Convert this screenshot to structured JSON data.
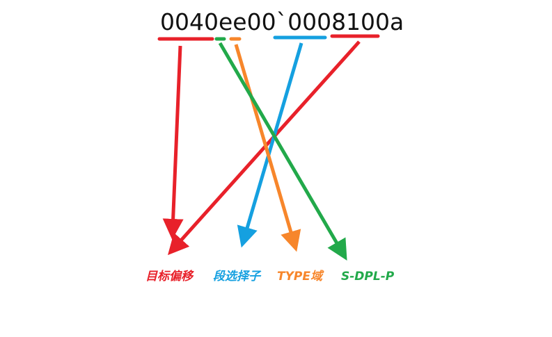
{
  "hex_value": "0040ee00`0008100a",
  "fields": [
    {
      "key": "offset",
      "label": "目标偏移",
      "color": "#e8212a"
    },
    {
      "key": "selector",
      "label": "段选择子",
      "color": "#15a0e0"
    },
    {
      "key": "type",
      "label": "TYPE域",
      "color": "#f7862b"
    },
    {
      "key": "sdplp",
      "label": "S-DPL-P",
      "color": "#22a94a"
    }
  ]
}
